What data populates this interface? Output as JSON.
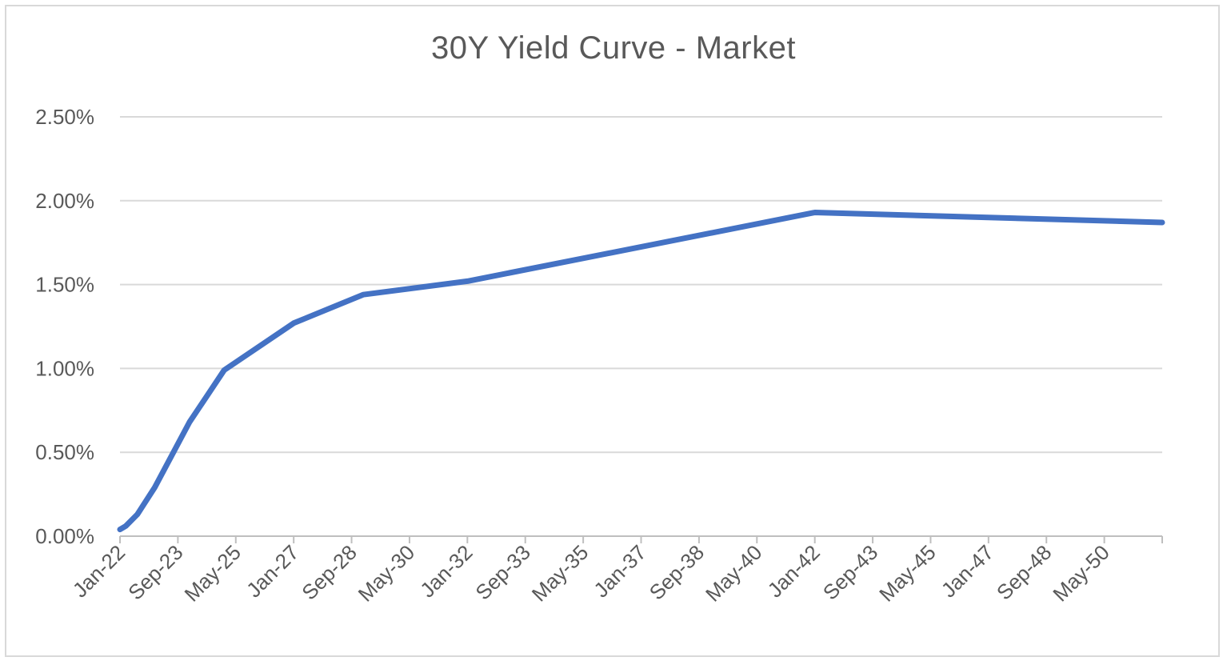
{
  "chart_data": {
    "type": "line",
    "title": "30Y Yield Curve - Market",
    "xlabel": "",
    "ylabel": "",
    "x_start": "Jan-22",
    "x_end": "Jan-52",
    "x_tick_labels": [
      "Jan-22",
      "Sep-23",
      "May-25",
      "Jan-27",
      "Sep-28",
      "May-30",
      "Jan-32",
      "Sep-33",
      "May-35",
      "Jan-37",
      "Sep-38",
      "May-40",
      "Jan-42",
      "Sep-43",
      "May-45",
      "Jan-47",
      "Sep-48",
      "May-50"
    ],
    "y_tick_labels": [
      "0.00%",
      "0.50%",
      "1.00%",
      "1.50%",
      "2.00%",
      "2.50%"
    ],
    "ylim": [
      0,
      2.5
    ],
    "grid": true,
    "legend": "none",
    "color": "#4472c4",
    "series": [
      {
        "x": [
          "Jan-22",
          "Mar-22",
          "Jul-22",
          "Jan-23",
          "Jan-24",
          "Jan-25",
          "Jan-27",
          "Jan-29",
          "Jan-32",
          "Jan-42",
          "Jan-52"
        ],
        "values": [
          0.04,
          0.06,
          0.13,
          0.29,
          0.68,
          0.99,
          1.27,
          1.44,
          1.52,
          1.93,
          1.87
        ]
      }
    ]
  }
}
